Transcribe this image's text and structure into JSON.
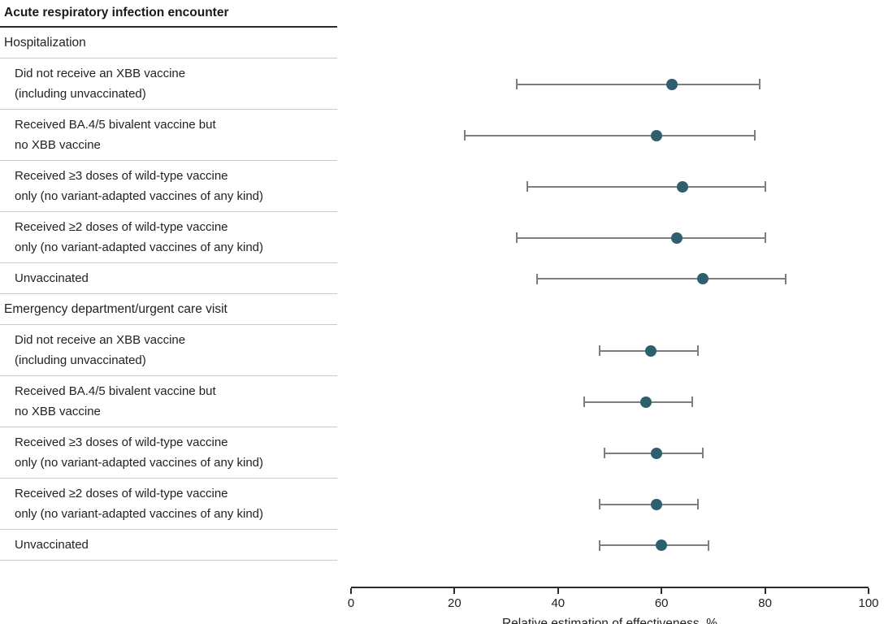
{
  "chart_data": {
    "type": "forest",
    "title": "Acute respiratory infection encounter",
    "xlabel": "Relative estimation of effectiveness, %",
    "xlim": [
      0,
      100
    ],
    "xticks": [
      0,
      20,
      40,
      60,
      80,
      100
    ],
    "grid": false,
    "legend": "none",
    "marker_shape": "circle",
    "groups": [
      {
        "label": "Hospitalization",
        "rows": [
          {
            "label": "Did not receive an XBB vaccine\n(including unvaccinated)",
            "estimate": 62,
            "ci_low": 32,
            "ci_high": 79
          },
          {
            "label": "Received BA.4/5 bivalent vaccine but\nno XBB vaccine",
            "estimate": 59,
            "ci_low": 22,
            "ci_high": 78
          },
          {
            "label": "Received ≥3 doses of wild-type vaccine\nonly (no variant-adapted vaccines of any kind)",
            "estimate": 64,
            "ci_low": 34,
            "ci_high": 80
          },
          {
            "label": "Received ≥2 doses of wild-type vaccine\nonly (no variant-adapted vaccines of any kind)",
            "estimate": 63,
            "ci_low": 32,
            "ci_high": 80
          },
          {
            "label": "Unvaccinated",
            "estimate": 68,
            "ci_low": 36,
            "ci_high": 84
          }
        ]
      },
      {
        "label": "Emergency department/urgent care visit",
        "rows": [
          {
            "label": "Did not receive an XBB vaccine\n(including unvaccinated)",
            "estimate": 58,
            "ci_low": 48,
            "ci_high": 67
          },
          {
            "label": "Received BA.4/5 bivalent vaccine but\nno XBB vaccine",
            "estimate": 57,
            "ci_low": 45,
            "ci_high": 66
          },
          {
            "label": "Received ≥3 doses of wild-type vaccine\nonly (no variant-adapted vaccines of any kind)",
            "estimate": 59,
            "ci_low": 49,
            "ci_high": 68
          },
          {
            "label": "Received ≥2 doses of wild-type vaccine\nonly (no variant-adapted vaccines of any kind)",
            "estimate": 59,
            "ci_low": 48,
            "ci_high": 67
          },
          {
            "label": "Unvaccinated",
            "estimate": 60,
            "ci_low": 48,
            "ci_high": 69
          }
        ]
      }
    ],
    "colors": {
      "marker": "#2e5f6e",
      "error_bar": "#7e7e7e",
      "row_separator": "#c9c9c9",
      "title_rule": "#2b2b2b",
      "axis": "#2b2b2b"
    }
  }
}
